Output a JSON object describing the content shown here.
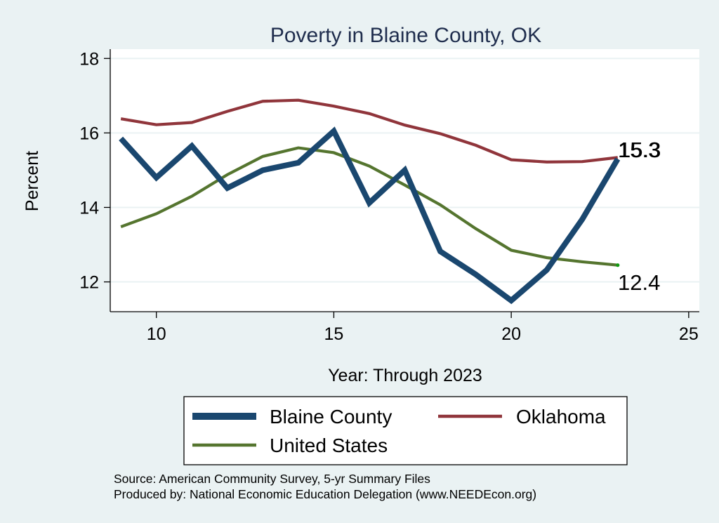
{
  "chart_data": {
    "type": "line",
    "title": "Poverty in Blaine County, OK",
    "xlabel": "Year: Through 2023",
    "ylabel": "Percent",
    "xlim": [
      8.7,
      25.3
    ],
    "ylim": [
      11.2,
      18.25
    ],
    "xticks": [
      10,
      15,
      20,
      25
    ],
    "yticks": [
      12,
      14,
      16,
      18
    ],
    "grid": true,
    "legend_position": "bottom",
    "x": [
      9,
      10,
      11,
      12,
      13,
      14,
      15,
      16,
      17,
      18,
      19,
      20,
      21,
      22,
      23
    ],
    "series": [
      {
        "name": "Blaine County",
        "color": "#1a476f",
        "values": [
          15.85,
          14.8,
          15.65,
          14.52,
          15.0,
          15.2,
          16.05,
          14.12,
          15.0,
          12.82,
          12.2,
          11.5,
          12.32,
          13.68,
          15.3
        ]
      },
      {
        "name": "Oklahoma",
        "color": "#90353b",
        "values": [
          16.38,
          16.22,
          16.28,
          16.58,
          16.85,
          16.88,
          16.72,
          16.52,
          16.21,
          15.98,
          15.67,
          15.28,
          15.22,
          15.23,
          15.34
        ]
      },
      {
        "name": "United States",
        "color": "#55752f",
        "values": [
          13.48,
          13.83,
          14.3,
          14.88,
          15.37,
          15.6,
          15.47,
          15.11,
          14.6,
          14.07,
          13.43,
          12.85,
          12.65,
          12.54,
          12.45
        ]
      }
    ],
    "end_labels": {
      "blaine": "15.3",
      "oklahoma": "15.3",
      "us": "12.4"
    }
  },
  "footer": {
    "source_line": "Source: American Community Survey, 5-yr Summary Files",
    "produced_line": "Produced by: National Economic Education Delegation (www.NEEDEcon.org)"
  }
}
